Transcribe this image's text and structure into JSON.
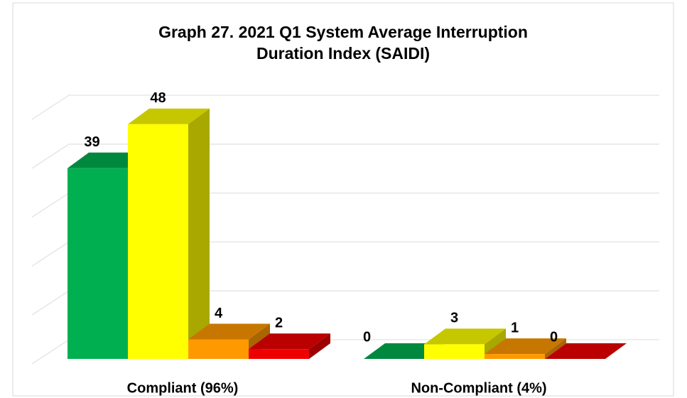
{
  "chart_data": {
    "type": "bar3d",
    "title": [
      "Graph 27. 2021 Q1 System Average Interruption",
      "Duration Index (SAIDI)"
    ],
    "categories": [
      "Compliant (96%)",
      "Non-Compliant (4%)"
    ],
    "series": [
      {
        "color": "#00b050",
        "values": [
          39,
          0
        ]
      },
      {
        "color": "#ffff00",
        "values": [
          48,
          3
        ]
      },
      {
        "color": "#ff9900",
        "values": [
          4,
          1
        ]
      },
      {
        "color": "#ee0000",
        "values": [
          2,
          0
        ]
      }
    ],
    "ylim": [
      0,
      50
    ],
    "yticks": [
      0,
      10,
      20,
      30,
      40,
      50
    ],
    "grid": true
  }
}
